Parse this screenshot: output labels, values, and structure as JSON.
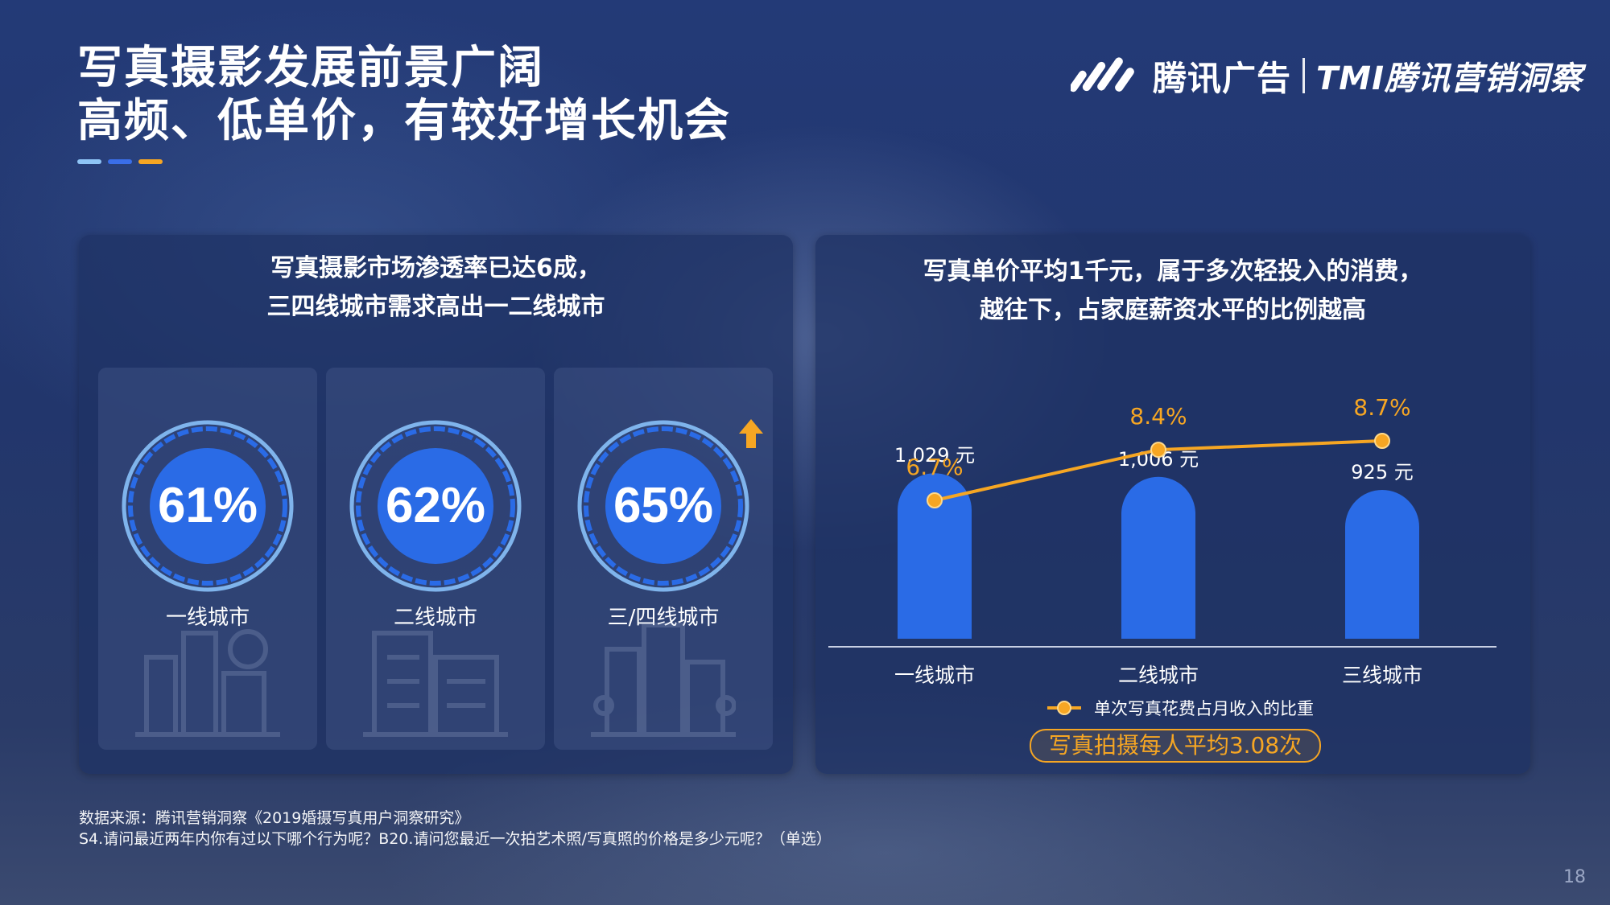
{
  "title": {
    "line1": "写真摄影发展前景广阔",
    "line2": "高频、低单价，有较好增长机会",
    "underline_colors": [
      "#8ec4f6",
      "#3a6ee8",
      "#f6a623"
    ]
  },
  "logo": {
    "brand": "腾讯广告",
    "sub": "TMI腾讯营销洞察",
    "icon": "tencent-ads-logo-mark"
  },
  "left_panel": {
    "heading_line1": "写真摄影市场渗透率已达6成，",
    "heading_line2": "三四线城市需求高出一二线城市",
    "cards": [
      {
        "value": "61%",
        "label": "一线城市",
        "icon": "city-skyline-icon",
        "highlight": false
      },
      {
        "value": "62%",
        "label": "二线城市",
        "icon": "office-building-icon",
        "highlight": false
      },
      {
        "value": "65%",
        "label": "三/四线城市",
        "icon": "town-buildings-icon",
        "highlight": true
      }
    ]
  },
  "right_panel": {
    "heading_line1": "写真单价平均1千元，属于多次轻投入的消费，",
    "heading_line2": "越往下，占家庭薪资水平的比例越高",
    "total_badge": "写真拍摄每人平均3.08次"
  },
  "chart_data": {
    "type": "bar",
    "categories": [
      "一线城市",
      "二线城市",
      "三线城市"
    ],
    "series": [
      {
        "values": [
          1029,
          1006,
          925
        ],
        "labels": [
          "1,029 元",
          "1,006 元",
          "925 元"
        ]
      },
      {
        "name": "单次写真花费占月收入的比重",
        "type": "line",
        "values": [
          6.7,
          8.4,
          8.7
        ],
        "labels": [
          "6.7%",
          "8.4%",
          "8.7%"
        ]
      }
    ],
    "legend": "bottom-center",
    "grid": false,
    "colors": {
      "bar": "#2a6be6",
      "line": "#f6a623"
    }
  },
  "source": {
    "line1": "数据来源：腾讯营销洞察《2019婚摄写真用户洞察研究》",
    "line2": "S4.请问最近两年内你有过以下哪个行为呢？B20.请问您最近一次拍艺术照/写真照的价格是多少元呢？（单选）"
  },
  "page_number": "18"
}
